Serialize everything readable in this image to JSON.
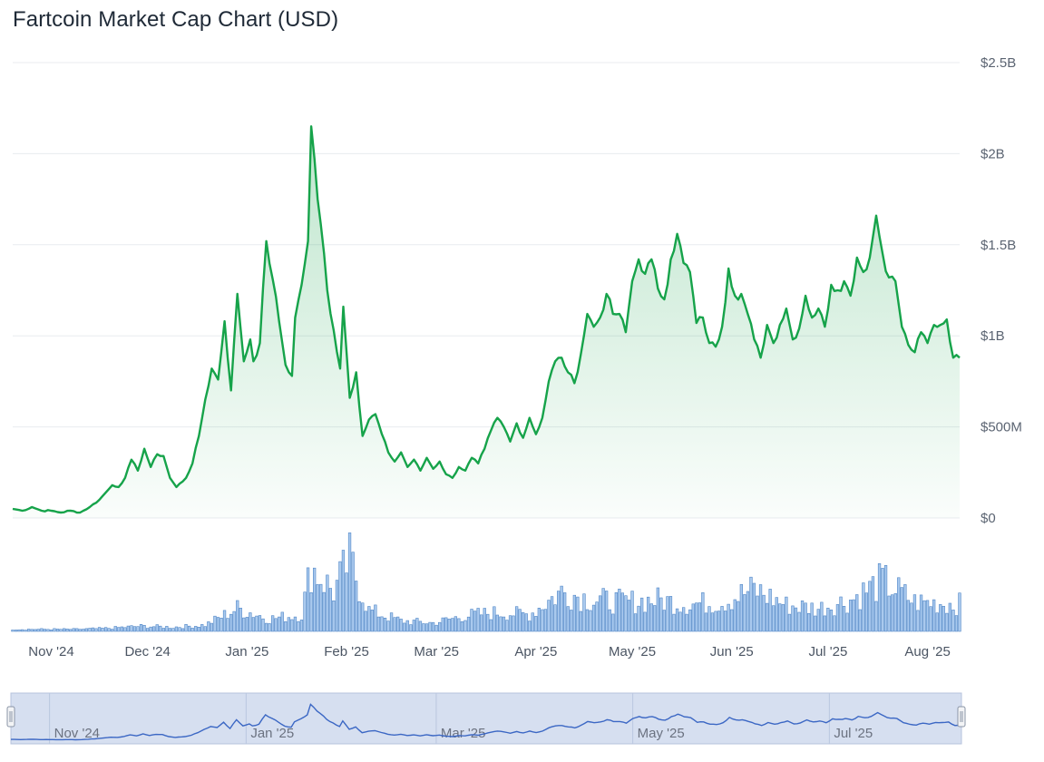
{
  "title": "Fartcoin Market Cap Chart (USD)",
  "colors": {
    "line": "#16a34a",
    "area_top": "#16a34a",
    "volume_fill": "#a9c9ee",
    "volume_stroke": "#4f86c6",
    "grid": "#e8ebef",
    "navigator_bg": "#d6dff0",
    "navigator_line": "#3b67c4"
  },
  "chart_data": [
    {
      "type": "area",
      "title": "Fartcoin Market Cap Chart (USD)",
      "xlabel": "",
      "ylabel": "",
      "ylim": [
        0,
        2500000000
      ],
      "yticks": [
        {
          "value": 0,
          "label": "$0"
        },
        {
          "value": 500000000,
          "label": "$500M"
        },
        {
          "value": 1000000000,
          "label": "$1B"
        },
        {
          "value": 1500000000,
          "label": "$1.5B"
        },
        {
          "value": 2000000000,
          "label": "$2B"
        },
        {
          "value": 2500000000,
          "label": "$2.5B"
        }
      ],
      "xlim": [
        "2024-10-20",
        "2025-08-11"
      ],
      "xticks": [
        {
          "date": "2024-11-01",
          "label": "Nov '24"
        },
        {
          "date": "2024-12-01",
          "label": "Dec '24"
        },
        {
          "date": "2025-01-01",
          "label": "Jan '25"
        },
        {
          "date": "2025-02-01",
          "label": "Feb '25"
        },
        {
          "date": "2025-03-01",
          "label": "Mar '25"
        },
        {
          "date": "2025-04-01",
          "label": "Apr '25"
        },
        {
          "date": "2025-05-01",
          "label": "May '25"
        },
        {
          "date": "2025-06-01",
          "label": "Jun '25"
        },
        {
          "date": "2025-07-01",
          "label": "Jul '25"
        },
        {
          "date": "2025-08-01",
          "label": "Aug '25"
        }
      ],
      "grid": true,
      "series": [
        {
          "name": "Market Cap",
          "points": [
            [
              "2024-10-20",
              0.05
            ],
            [
              "2024-10-23",
              0.04
            ],
            [
              "2024-10-26",
              0.06
            ],
            [
              "2024-10-29",
              0.04
            ],
            [
              "2024-11-01",
              0.04
            ],
            [
              "2024-11-04",
              0.03
            ],
            [
              "2024-11-07",
              0.04
            ],
            [
              "2024-11-10",
              0.03
            ],
            [
              "2024-11-13",
              0.06
            ],
            [
              "2024-11-16",
              0.1
            ],
            [
              "2024-11-18",
              0.14
            ],
            [
              "2024-11-20",
              0.18
            ],
            [
              "2024-11-22",
              0.17
            ],
            [
              "2024-11-24",
              0.22
            ],
            [
              "2024-11-26",
              0.32
            ],
            [
              "2024-11-28",
              0.26
            ],
            [
              "2024-11-30",
              0.38
            ],
            [
              "2024-12-02",
              0.28
            ],
            [
              "2024-12-04",
              0.35
            ],
            [
              "2024-12-06",
              0.34
            ],
            [
              "2024-12-08",
              0.22
            ],
            [
              "2024-12-10",
              0.17
            ],
            [
              "2024-12-13",
              0.22
            ],
            [
              "2024-12-15",
              0.3
            ],
            [
              "2024-12-17",
              0.45
            ],
            [
              "2024-12-19",
              0.65
            ],
            [
              "2024-12-21",
              0.82
            ],
            [
              "2024-12-23",
              0.76
            ],
            [
              "2024-12-25",
              1.08
            ],
            [
              "2024-12-27",
              0.7
            ],
            [
              "2024-12-29",
              1.23
            ],
            [
              "2024-12-31",
              0.86
            ],
            [
              "2025-01-02",
              0.98
            ],
            [
              "2025-01-03",
              0.86
            ],
            [
              "2025-01-05",
              0.96
            ],
            [
              "2025-01-07",
              1.52
            ],
            [
              "2025-01-09",
              1.31
            ],
            [
              "2025-01-11",
              1.08
            ],
            [
              "2025-01-13",
              0.84
            ],
            [
              "2025-01-15",
              0.78
            ],
            [
              "2025-01-16",
              1.1
            ],
            [
              "2025-01-18",
              1.28
            ],
            [
              "2025-01-20",
              1.52
            ],
            [
              "2025-01-21",
              2.15
            ],
            [
              "2025-01-23",
              1.75
            ],
            [
              "2025-01-25",
              1.45
            ],
            [
              "2025-01-26",
              1.25
            ],
            [
              "2025-01-28",
              1.03
            ],
            [
              "2025-01-30",
              0.82
            ],
            [
              "2025-01-31",
              1.16
            ],
            [
              "2025-02-02",
              0.66
            ],
            [
              "2025-02-04",
              0.8
            ],
            [
              "2025-02-06",
              0.45
            ],
            [
              "2025-02-08",
              0.54
            ],
            [
              "2025-02-10",
              0.57
            ],
            [
              "2025-02-12",
              0.46
            ],
            [
              "2025-02-14",
              0.36
            ],
            [
              "2025-02-16",
              0.31
            ],
            [
              "2025-02-18",
              0.36
            ],
            [
              "2025-02-20",
              0.28
            ],
            [
              "2025-02-22",
              0.32
            ],
            [
              "2025-02-24",
              0.26
            ],
            [
              "2025-02-26",
              0.33
            ],
            [
              "2025-02-28",
              0.27
            ],
            [
              "2025-03-02",
              0.31
            ],
            [
              "2025-03-04",
              0.24
            ],
            [
              "2025-03-06",
              0.22
            ],
            [
              "2025-03-08",
              0.28
            ],
            [
              "2025-03-10",
              0.26
            ],
            [
              "2025-03-12",
              0.33
            ],
            [
              "2025-03-14",
              0.3
            ],
            [
              "2025-03-16",
              0.38
            ],
            [
              "2025-03-18",
              0.48
            ],
            [
              "2025-03-20",
              0.55
            ],
            [
              "2025-03-22",
              0.5
            ],
            [
              "2025-03-24",
              0.42
            ],
            [
              "2025-03-26",
              0.52
            ],
            [
              "2025-03-28",
              0.44
            ],
            [
              "2025-03-30",
              0.55
            ],
            [
              "2025-04-01",
              0.46
            ],
            [
              "2025-04-03",
              0.55
            ],
            [
              "2025-04-05",
              0.75
            ],
            [
              "2025-04-07",
              0.86
            ],
            [
              "2025-04-09",
              0.88
            ],
            [
              "2025-04-11",
              0.8
            ],
            [
              "2025-04-13",
              0.74
            ],
            [
              "2025-04-15",
              0.9
            ],
            [
              "2025-04-17",
              1.12
            ],
            [
              "2025-04-19",
              1.05
            ],
            [
              "2025-04-21",
              1.1
            ],
            [
              "2025-04-23",
              1.23
            ],
            [
              "2025-04-25",
              1.12
            ],
            [
              "2025-04-27",
              1.12
            ],
            [
              "2025-04-29",
              1.02
            ],
            [
              "2025-05-01",
              1.3
            ],
            [
              "2025-05-03",
              1.42
            ],
            [
              "2025-05-05",
              1.34
            ],
            [
              "2025-05-07",
              1.42
            ],
            [
              "2025-05-09",
              1.26
            ],
            [
              "2025-05-11",
              1.2
            ],
            [
              "2025-05-13",
              1.42
            ],
            [
              "2025-05-15",
              1.56
            ],
            [
              "2025-05-17",
              1.4
            ],
            [
              "2025-05-19",
              1.35
            ],
            [
              "2025-05-21",
              1.07
            ],
            [
              "2025-05-23",
              1.1
            ],
            [
              "2025-05-25",
              0.96
            ],
            [
              "2025-05-27",
              0.94
            ],
            [
              "2025-05-29",
              1.05
            ],
            [
              "2025-05-31",
              1.37
            ],
            [
              "2025-06-02",
              1.22
            ],
            [
              "2025-06-04",
              1.23
            ],
            [
              "2025-06-06",
              1.12
            ],
            [
              "2025-06-08",
              0.98
            ],
            [
              "2025-06-10",
              0.88
            ],
            [
              "2025-06-12",
              1.06
            ],
            [
              "2025-06-14",
              0.96
            ],
            [
              "2025-06-16",
              1.06
            ],
            [
              "2025-06-18",
              1.15
            ],
            [
              "2025-06-20",
              0.98
            ],
            [
              "2025-06-22",
              1.04
            ],
            [
              "2025-06-24",
              1.22
            ],
            [
              "2025-06-26",
              1.1
            ],
            [
              "2025-06-28",
              1.15
            ],
            [
              "2025-06-30",
              1.05
            ],
            [
              "2025-07-02",
              1.28
            ],
            [
              "2025-07-04",
              1.25
            ],
            [
              "2025-07-06",
              1.3
            ],
            [
              "2025-07-08",
              1.22
            ],
            [
              "2025-07-10",
              1.43
            ],
            [
              "2025-07-12",
              1.35
            ],
            [
              "2025-07-14",
              1.43
            ],
            [
              "2025-07-16",
              1.66
            ],
            [
              "2025-07-18",
              1.45
            ],
            [
              "2025-07-20",
              1.32
            ],
            [
              "2025-07-22",
              1.3
            ],
            [
              "2025-07-24",
              1.05
            ],
            [
              "2025-07-26",
              0.95
            ],
            [
              "2025-07-28",
              0.91
            ],
            [
              "2025-07-30",
              1.02
            ],
            [
              "2025-08-01",
              0.96
            ],
            [
              "2025-08-03",
              1.06
            ],
            [
              "2025-08-05",
              1.06
            ],
            [
              "2025-08-07",
              1.09
            ],
            [
              "2025-08-09",
              0.88
            ],
            [
              "2025-08-11",
              0.88
            ]
          ],
          "unit": "billion USD"
        }
      ],
      "volume": {
        "unit": "relative",
        "points": [
          [
            "2024-10-20",
            0.02
          ],
          [
            "2024-10-30",
            0.02
          ],
          [
            "2024-11-09",
            0.02
          ],
          [
            "2024-11-19",
            0.03
          ],
          [
            "2024-11-29",
            0.05
          ],
          [
            "2024-12-09",
            0.04
          ],
          [
            "2024-12-19",
            0.06
          ],
          [
            "2024-12-29",
            0.22
          ],
          [
            "2025-01-08",
            0.12
          ],
          [
            "2025-01-18",
            0.16
          ],
          [
            "2025-01-21",
            0.62
          ],
          [
            "2025-01-28",
            0.38
          ],
          [
            "2025-02-02",
            0.68
          ],
          [
            "2025-02-08",
            0.2
          ],
          [
            "2025-02-18",
            0.1
          ],
          [
            "2025-02-28",
            0.08
          ],
          [
            "2025-03-10",
            0.15
          ],
          [
            "2025-03-20",
            0.18
          ],
          [
            "2025-03-30",
            0.16
          ],
          [
            "2025-04-09",
            0.38
          ],
          [
            "2025-04-19",
            0.3
          ],
          [
            "2025-04-29",
            0.28
          ],
          [
            "2025-05-09",
            0.3
          ],
          [
            "2025-05-19",
            0.26
          ],
          [
            "2025-05-29",
            0.28
          ],
          [
            "2025-06-08",
            0.4
          ],
          [
            "2025-06-18",
            0.25
          ],
          [
            "2025-06-28",
            0.22
          ],
          [
            "2025-07-08",
            0.3
          ],
          [
            "2025-07-18",
            0.48
          ],
          [
            "2025-07-28",
            0.28
          ],
          [
            "2025-08-11",
            0.26
          ]
        ]
      },
      "navigator": {
        "labels": [
          "Nov '24",
          "Jan '25",
          "Mar '25",
          "May '25",
          "Jul '25"
        ]
      }
    }
  ]
}
